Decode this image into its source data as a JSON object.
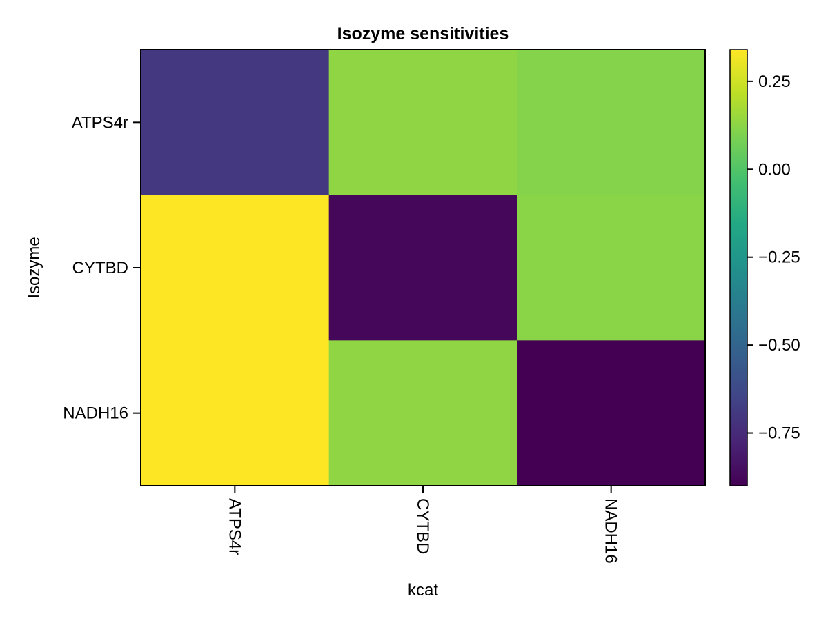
{
  "chart_data": {
    "type": "heatmap",
    "title": "Isozyme sensitivities",
    "xlabel": "kcat",
    "ylabel": "Isozyme",
    "x_categories": [
      "ATPS4r",
      "CYTBD",
      "NADH16"
    ],
    "y_categories": [
      "ATPS4r",
      "CYTBD",
      "NADH16"
    ],
    "values": [
      [
        -0.7,
        0.13,
        0.11
      ],
      [
        0.34,
        -0.88,
        0.12
      ],
      [
        0.34,
        0.13,
        -0.9
      ]
    ],
    "colormap": "viridis",
    "colorbar": {
      "range": [
        -0.9,
        0.34
      ],
      "ticks": [
        0.25,
        0.0,
        -0.25,
        -0.5,
        -0.75
      ],
      "tick_labels": [
        "0.25",
        "0.00",
        "−0.25",
        "−0.50",
        "−0.75"
      ]
    },
    "grid": false,
    "colorbar_placement": "right"
  }
}
